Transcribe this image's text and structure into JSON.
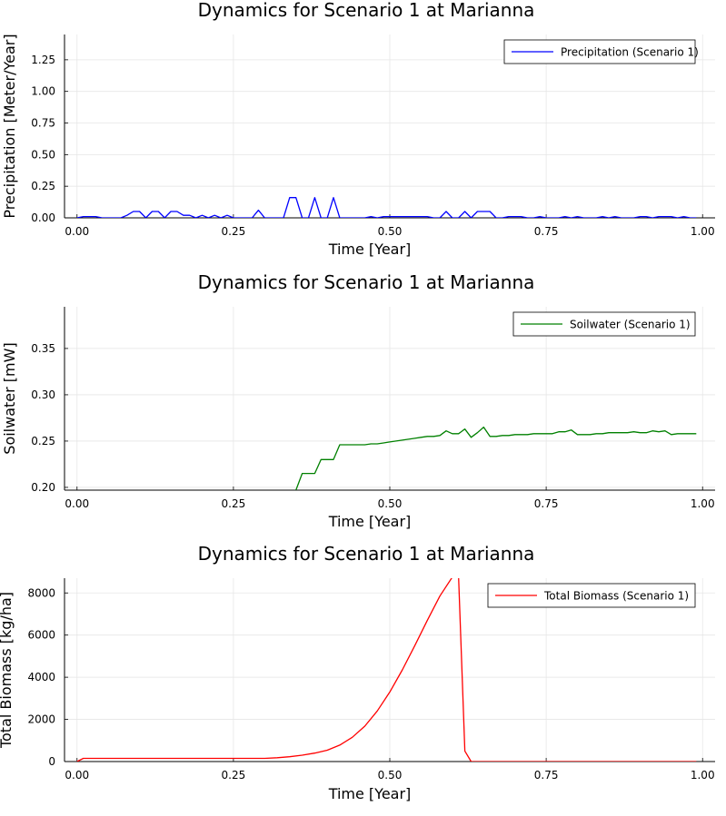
{
  "chart_data": [
    {
      "type": "line",
      "title": "Dynamics for Scenario 1 at Marianna",
      "xlabel": "Time [Year]",
      "ylabel": "Precipitation [Meter/Year]",
      "xlim": [
        -0.02,
        1.02
      ],
      "ylim": [
        0,
        1.45
      ],
      "xticks": [
        0.0,
        0.25,
        0.5,
        0.75,
        1.0
      ],
      "xtick_labels": [
        "0.00",
        "0.25",
        "0.50",
        "0.75",
        "1.00"
      ],
      "yticks": [
        0.0,
        0.25,
        0.5,
        0.75,
        1.0,
        1.25
      ],
      "ytick_labels": [
        "0.00",
        "0.25",
        "0.50",
        "0.75",
        "1.00",
        "1.25"
      ],
      "grid": true,
      "legend": "top-right",
      "series": [
        {
          "name": "Precipitation (Scenario 1)",
          "color": "#0000ff",
          "x": [
            0.0,
            0.01,
            0.02,
            0.03,
            0.04,
            0.05,
            0.06,
            0.07,
            0.08,
            0.09,
            0.1,
            0.11,
            0.12,
            0.13,
            0.14,
            0.15,
            0.16,
            0.17,
            0.18,
            0.19,
            0.2,
            0.21,
            0.22,
            0.23,
            0.24,
            0.25,
            0.26,
            0.27,
            0.28,
            0.29,
            0.3,
            0.31,
            0.32,
            0.33,
            0.34,
            0.35,
            0.36,
            0.37,
            0.38,
            0.39,
            0.4,
            0.41,
            0.42,
            0.43,
            0.44,
            0.45,
            0.46,
            0.47,
            0.48,
            0.49,
            0.5,
            0.51,
            0.52,
            0.53,
            0.54,
            0.55,
            0.56,
            0.57,
            0.58,
            0.59,
            0.6,
            0.61,
            0.62,
            0.63,
            0.64,
            0.65,
            0.66,
            0.67,
            0.68,
            0.69,
            0.7,
            0.71,
            0.72,
            0.73,
            0.74,
            0.75,
            0.76,
            0.77,
            0.78,
            0.79,
            0.8,
            0.81,
            0.82,
            0.83,
            0.84,
            0.85,
            0.86,
            0.87,
            0.88,
            0.89,
            0.9,
            0.91,
            0.92,
            0.93,
            0.94,
            0.95,
            0.96,
            0.97,
            0.98,
            0.99
          ],
          "y": [
            0.0,
            0.01,
            0.01,
            0.01,
            0.0,
            0.0,
            0.0,
            0.0,
            0.02,
            0.05,
            0.05,
            0.0,
            0.05,
            0.05,
            0.0,
            0.05,
            0.05,
            0.02,
            0.02,
            0.0,
            0.02,
            0.0,
            0.02,
            0.0,
            0.02,
            0.0,
            0.0,
            0.0,
            0.0,
            0.06,
            0.0,
            0.0,
            0.0,
            0.0,
            0.16,
            0.16,
            0.0,
            0.0,
            0.16,
            0.0,
            0.0,
            0.16,
            0.0,
            0.0,
            0.0,
            0.0,
            0.0,
            0.01,
            0.0,
            0.01,
            0.01,
            0.01,
            0.01,
            0.01,
            0.01,
            0.01,
            0.01,
            0.0,
            0.0,
            0.05,
            0.0,
            0.0,
            0.05,
            0.0,
            0.05,
            0.05,
            0.05,
            0.0,
            0.0,
            0.01,
            0.01,
            0.01,
            0.0,
            0.0,
            0.01,
            0.0,
            0.0,
            0.0,
            0.01,
            0.0,
            0.01,
            0.0,
            0.0,
            0.0,
            0.01,
            0.0,
            0.01,
            0.0,
            0.0,
            0.0,
            0.01,
            0.01,
            0.0,
            0.01,
            0.01,
            0.01,
            0.0,
            0.01,
            0.0,
            0.0
          ]
        }
      ]
    },
    {
      "type": "line",
      "title": "Dynamics for Scenario 1 at Marianna",
      "xlabel": "Time [Year]",
      "ylabel": "Soilwater [mW]",
      "xlim": [
        -0.02,
        1.02
      ],
      "ylim": [
        0.197,
        0.395
      ],
      "xticks": [
        0.0,
        0.25,
        0.5,
        0.75,
        1.0
      ],
      "xtick_labels": [
        "0.00",
        "0.25",
        "0.50",
        "0.75",
        "1.00"
      ],
      "yticks": [
        0.2,
        0.25,
        0.3,
        0.35
      ],
      "ytick_labels": [
        "0.20",
        "0.25",
        "0.30",
        "0.35"
      ],
      "grid": true,
      "legend": "top-right",
      "series": [
        {
          "name": "Soilwater (Scenario 1)",
          "color": "#008000",
          "x": [
            0.35,
            0.36,
            0.37,
            0.38,
            0.39,
            0.4,
            0.41,
            0.42,
            0.43,
            0.44,
            0.45,
            0.46,
            0.47,
            0.48,
            0.49,
            0.5,
            0.51,
            0.52,
            0.53,
            0.54,
            0.55,
            0.56,
            0.57,
            0.58,
            0.59,
            0.6,
            0.61,
            0.62,
            0.63,
            0.64,
            0.65,
            0.66,
            0.67,
            0.68,
            0.69,
            0.7,
            0.71,
            0.72,
            0.73,
            0.74,
            0.75,
            0.76,
            0.77,
            0.78,
            0.79,
            0.8,
            0.81,
            0.82,
            0.83,
            0.84,
            0.85,
            0.86,
            0.87,
            0.88,
            0.89,
            0.9,
            0.91,
            0.92,
            0.93,
            0.94,
            0.95,
            0.96,
            0.97,
            0.98,
            0.99
          ],
          "y": [
            0.197,
            0.215,
            0.215,
            0.215,
            0.23,
            0.23,
            0.23,
            0.246,
            0.246,
            0.246,
            0.246,
            0.246,
            0.247,
            0.247,
            0.248,
            0.249,
            0.25,
            0.251,
            0.252,
            0.253,
            0.254,
            0.255,
            0.255,
            0.256,
            0.261,
            0.258,
            0.258,
            0.263,
            0.254,
            0.259,
            0.265,
            0.255,
            0.255,
            0.256,
            0.256,
            0.257,
            0.257,
            0.257,
            0.258,
            0.258,
            0.258,
            0.258,
            0.26,
            0.26,
            0.262,
            0.257,
            0.257,
            0.257,
            0.258,
            0.258,
            0.259,
            0.259,
            0.259,
            0.259,
            0.26,
            0.259,
            0.259,
            0.261,
            0.26,
            0.261,
            0.257,
            0.258,
            0.258,
            0.258,
            0.258
          ]
        }
      ]
    },
    {
      "type": "line",
      "title": "Dynamics for Scenario 1 at Marianna",
      "xlabel": "Time [Year]",
      "ylabel": "Total Biomass [kg/ha]",
      "xlim": [
        -0.02,
        1.02
      ],
      "ylim": [
        0,
        8700
      ],
      "xticks": [
        0.0,
        0.25,
        0.5,
        0.75,
        1.0
      ],
      "xtick_labels": [
        "0.00",
        "0.25",
        "0.50",
        "0.75",
        "1.00"
      ],
      "yticks": [
        0,
        2000,
        4000,
        6000,
        8000
      ],
      "ytick_labels": [
        "0",
        "2000",
        "4000",
        "6000",
        "8000"
      ],
      "grid": true,
      "legend": "top-right",
      "series": [
        {
          "name": "Total Biomass (Scenario 1)",
          "color": "#ff0000",
          "x": [
            0.0,
            0.01,
            0.05,
            0.1,
            0.15,
            0.2,
            0.25,
            0.3,
            0.32,
            0.34,
            0.36,
            0.38,
            0.4,
            0.42,
            0.44,
            0.46,
            0.48,
            0.5,
            0.52,
            0.54,
            0.56,
            0.58,
            0.6,
            0.61,
            0.62,
            0.63,
            0.65,
            0.7,
            0.8,
            0.9,
            0.99
          ],
          "y": [
            0,
            150,
            150,
            150,
            150,
            150,
            150,
            150,
            180,
            230,
            300,
            400,
            540,
            780,
            1150,
            1680,
            2400,
            3300,
            4350,
            5500,
            6700,
            7850,
            8750,
            8750,
            500,
            0,
            0,
            0,
            0,
            0,
            0
          ]
        }
      ]
    }
  ]
}
